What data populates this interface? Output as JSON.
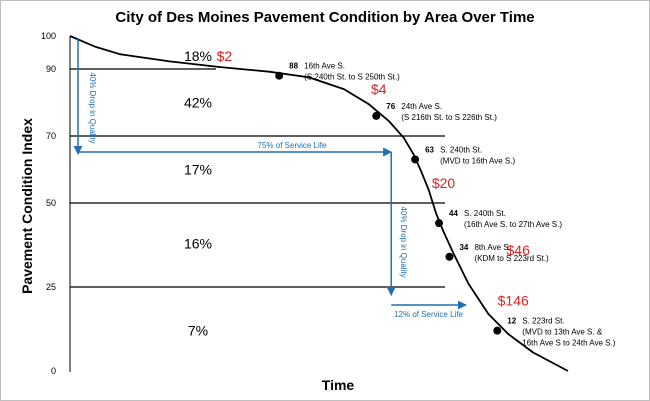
{
  "chart_data": {
    "type": "line",
    "title": "City of Des Moines Pavement Condition by Area Over Time",
    "xlabel": "Time",
    "ylabel": "Pavement Condition Index",
    "y_ticks": [
      "100",
      "90",
      "70",
      "50",
      "25",
      "0"
    ],
    "ylim": [
      0,
      100
    ],
    "x_range_percent_service_life": [
      0,
      100
    ],
    "grid": false,
    "thresholds": [
      90,
      70,
      50,
      25
    ],
    "zones": [
      {
        "label": "18%",
        "y_center": 94
      },
      {
        "label": "42%",
        "y_center": 80
      },
      {
        "label": "17%",
        "y_center": 60
      },
      {
        "label": "16%",
        "y_center": 38
      },
      {
        "label": "7%",
        "y_center": 12
      }
    ],
    "costs": [
      {
        "label": "$2",
        "x": 31,
        "y": 94
      },
      {
        "label": "$4",
        "x": 62,
        "y": 84
      },
      {
        "label": "$20",
        "x": 75,
        "y": 56
      },
      {
        "label": "$46",
        "x": 90,
        "y": 36
      },
      {
        "label": "$146",
        "x": 89,
        "y": 21
      }
    ],
    "series": [
      {
        "curve_x": [
          0,
          5,
          10,
          20,
          30,
          40,
          48,
          55,
          60,
          64,
          67,
          69,
          70.5,
          72,
          73.5,
          75,
          77,
          80,
          84,
          88,
          93,
          100
        ],
        "curve_y": [
          100,
          96.8,
          94.5,
          92.3,
          90.6,
          89.2,
          87.5,
          84,
          79.5,
          74.5,
          69.5,
          64.5,
          59.5,
          54,
          47,
          41.5,
          35,
          26,
          17,
          11,
          5.5,
          0
        ],
        "points": [
          {
            "x": 42,
            "y": 88,
            "value": "88",
            "label1": "16th Ave S.",
            "label2": "(S 240th St. to S 250th St.)"
          },
          {
            "x": 61.5,
            "y": 76,
            "value": "76",
            "label1": "24th Ave S.",
            "label2": "(S 216th St. to S 226th St.)"
          },
          {
            "x": 69.3,
            "y": 63,
            "value": "63",
            "label1": "S. 240th St.",
            "label2": "(MVD to 16th Ave S.)"
          },
          {
            "x": 74.1,
            "y": 44,
            "value": "44",
            "label1": "S. 240th St.",
            "label2": "(16th Ave S. to 27th Ave S.)"
          },
          {
            "x": 76.2,
            "y": 34,
            "value": "34",
            "label1": "8th Ave S.",
            "label2": "(KDM to  S 223rd St.)"
          },
          {
            "x": 85.8,
            "y": 12,
            "value": "12",
            "label1": "S. 223rd St.",
            "label2": "(MVD to 13th Ave S. &",
            "label3": "16th Ave S to 24th Ave S.)"
          }
        ]
      }
    ],
    "annotations": {
      "left_drop_text": "40% Drop in Quality",
      "service_75_text": "75% of Service Life",
      "right_drop_text": "40% Drop in Quality",
      "service_12_text": "12% of Service Life",
      "color": "#1f6fb3"
    },
    "curve_color": "#000000",
    "cost_color": "#e02020"
  }
}
